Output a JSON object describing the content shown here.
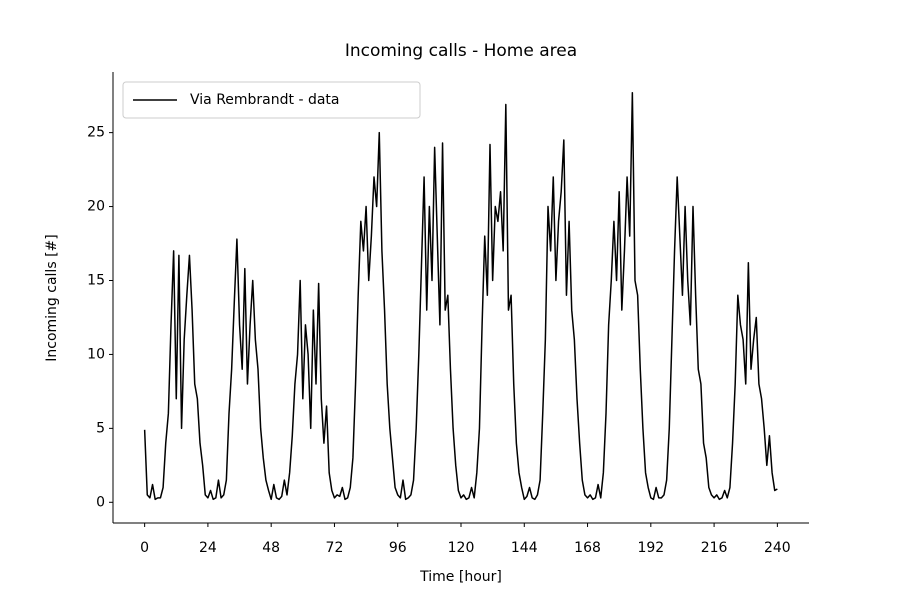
{
  "chart_data": {
    "type": "line",
    "title": "Incoming calls - Home area",
    "xlabel": "Time [hour]",
    "ylabel": "Incoming calls [#]",
    "x": [
      0,
      1,
      2,
      3,
      4,
      5,
      6,
      7,
      8,
      9,
      10,
      11,
      12,
      13,
      14,
      15,
      16,
      17,
      18,
      19,
      20,
      21,
      22,
      23,
      24,
      25,
      26,
      27,
      28,
      29,
      30,
      31,
      32,
      33,
      34,
      35,
      36,
      37,
      38,
      39,
      40,
      41,
      42,
      43,
      44,
      45,
      46,
      47,
      48,
      49,
      50,
      51,
      52,
      53,
      54,
      55,
      56,
      57,
      58,
      59,
      60,
      61,
      62,
      63,
      64,
      65,
      66,
      67,
      68,
      69,
      70,
      71,
      72,
      73,
      74,
      75,
      76,
      77,
      78,
      79,
      80,
      81,
      82,
      83,
      84,
      85,
      86,
      87,
      88,
      89,
      90,
      91,
      92,
      93,
      94,
      95,
      96,
      97,
      98,
      99,
      100,
      101,
      102,
      103,
      104,
      105,
      106,
      107,
      108,
      109,
      110,
      111,
      112,
      113,
      114,
      115,
      116,
      117,
      118,
      119,
      120,
      121,
      122,
      123,
      124,
      125,
      126,
      127,
      128,
      129,
      130,
      131,
      132,
      133,
      134,
      135,
      136,
      137,
      138,
      139,
      140,
      141,
      142,
      143,
      144,
      145,
      146,
      147,
      148,
      149,
      150,
      151,
      152,
      153,
      154,
      155,
      156,
      157,
      158,
      159,
      160,
      161,
      162,
      163,
      164,
      165,
      166,
      167,
      168,
      169,
      170,
      171,
      172,
      173,
      174,
      175,
      176,
      177,
      178,
      179,
      180,
      181,
      182,
      183,
      184,
      185,
      186,
      187,
      188,
      189,
      190,
      191,
      192,
      193,
      194,
      195,
      196,
      197,
      198,
      199,
      200,
      201,
      202,
      203,
      204,
      205,
      206,
      207,
      208,
      209,
      210,
      211,
      212,
      213,
      214,
      215,
      216,
      217,
      218,
      219,
      220,
      221,
      222,
      223,
      224,
      225,
      226,
      227,
      228,
      229,
      230,
      231,
      232,
      233,
      234,
      235,
      236,
      237,
      238,
      239,
      240
    ],
    "series": [
      {
        "name": "Via Rembrandt - data",
        "color": "#000000",
        "values": [
          4.9,
          0.5,
          0.3,
          1.2,
          0.2,
          0.3,
          0.3,
          1.0,
          4.0,
          6.0,
          12.0,
          17.0,
          7.0,
          16.7,
          5.0,
          11.0,
          14.0,
          16.7,
          13.0,
          8.0,
          7.0,
          4.0,
          2.5,
          0.5,
          0.3,
          0.8,
          0.2,
          0.3,
          1.5,
          0.3,
          0.5,
          1.5,
          6.0,
          9.0,
          13.5,
          17.8,
          12.0,
          9.0,
          15.8,
          8.0,
          12.0,
          15.0,
          11.0,
          9.0,
          5.0,
          3.0,
          1.5,
          0.8,
          0.2,
          1.2,
          0.3,
          0.2,
          0.4,
          1.5,
          0.5,
          2.0,
          4.5,
          8.0,
          10.0,
          15.0,
          7.0,
          12.0,
          10.0,
          5.0,
          13.0,
          8.0,
          14.8,
          7.0,
          4.0,
          6.5,
          2.0,
          0.8,
          0.3,
          0.5,
          0.4,
          1.0,
          0.2,
          0.3,
          1.0,
          3.0,
          8.0,
          14.0,
          19.0,
          17.0,
          20.0,
          15.0,
          18.0,
          22.0,
          20.0,
          25.0,
          17.0,
          13.0,
          8.0,
          5.0,
          3.0,
          1.0,
          0.5,
          0.3,
          1.5,
          0.2,
          0.3,
          0.5,
          1.5,
          5.0,
          10.0,
          16.0,
          22.0,
          13.0,
          20.0,
          15.0,
          24.0,
          18.0,
          12.0,
          24.3,
          13.0,
          14.0,
          9.0,
          5.0,
          2.5,
          0.8,
          0.3,
          0.5,
          0.2,
          0.3,
          1.0,
          0.3,
          2.0,
          5.0,
          12.0,
          18.0,
          14.0,
          24.2,
          15.0,
          20.0,
          19.0,
          21.0,
          17.0,
          26.9,
          13.0,
          14.0,
          8.0,
          4.0,
          2.0,
          1.0,
          0.2,
          0.4,
          1.0,
          0.3,
          0.2,
          0.5,
          1.5,
          6.0,
          11.0,
          20.0,
          17.0,
          22.0,
          15.0,
          19.0,
          21.0,
          24.5,
          14.0,
          19.0,
          13.0,
          11.0,
          7.0,
          4.0,
          1.5,
          0.5,
          0.3,
          0.5,
          0.2,
          0.3,
          1.2,
          0.3,
          2.0,
          6.0,
          12.0,
          15.0,
          19.0,
          15.0,
          21.0,
          13.0,
          17.0,
          22.0,
          18.0,
          27.7,
          15.0,
          14.0,
          9.0,
          5.0,
          2.0,
          1.0,
          0.3,
          0.2,
          1.0,
          0.3,
          0.3,
          0.5,
          1.5,
          5.0,
          11.0,
          17.0,
          22.0,
          18.0,
          14.0,
          20.0,
          15.0,
          12.0,
          20.0,
          14.0,
          9.0,
          8.0,
          4.0,
          3.0,
          1.0,
          0.5,
          0.3,
          0.5,
          0.2,
          0.3,
          0.8,
          0.3,
          1.0,
          4.0,
          8.0,
          14.0,
          12.0,
          11.0,
          8.0,
          16.2,
          9.0,
          11.0,
          12.5,
          8.0,
          7.0,
          5.0,
          2.5,
          4.5,
          2.0,
          0.8,
          0.9
        ]
      }
    ],
    "xlim": [
      -12,
      252
    ],
    "ylim": [
      -1.4,
      29.1
    ],
    "xticks": [
      0,
      24,
      48,
      72,
      96,
      120,
      144,
      168,
      192,
      216,
      240
    ],
    "yticks": [
      0,
      5,
      10,
      15,
      20,
      25
    ],
    "legend": "upper left"
  }
}
